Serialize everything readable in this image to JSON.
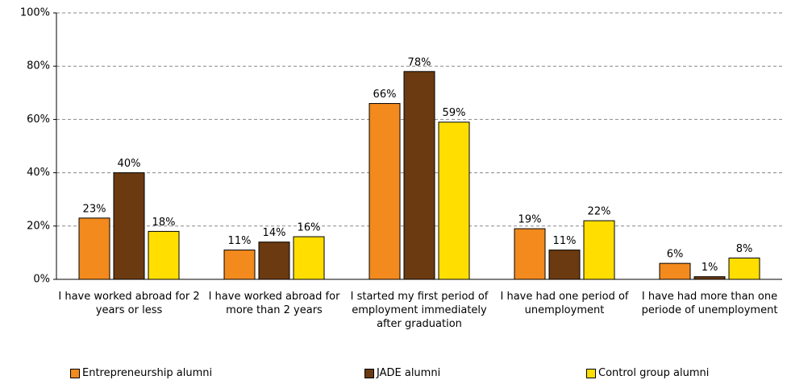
{
  "chart_data": {
    "type": "bar",
    "categories": [
      "I have worked abroad for 2 years or less",
      "I have worked abroad for more than 2 years",
      "I started my first period of employment immediately after graduation",
      "I have had one period of unemployment",
      "I have had more than one periode of unemployment"
    ],
    "series": [
      {
        "name": "Entrepreneurship alumni",
        "color": "#f28a1e",
        "values": [
          23,
          11,
          66,
          19,
          6
        ],
        "value_labels": [
          "23%",
          "11%",
          "66%",
          "19%",
          "6%"
        ]
      },
      {
        "name": "JADE alumni",
        "color": "#6b3a10",
        "values": [
          40,
          14,
          78,
          11,
          1
        ],
        "value_labels": [
          "40%",
          "14%",
          "78%",
          "11%",
          "1%"
        ]
      },
      {
        "name": "Control group alumni",
        "color": "#ffde00",
        "values": [
          18,
          16,
          59,
          22,
          8
        ],
        "value_labels": [
          "18%",
          "16%",
          "59%",
          "22%",
          "8%"
        ]
      }
    ],
    "ylim": [
      0,
      100
    ],
    "yticks": [
      {
        "value": 0,
        "label": "0%"
      },
      {
        "value": 20,
        "label": "20%"
      },
      {
        "value": 40,
        "label": "40%"
      },
      {
        "value": 60,
        "label": "60%"
      },
      {
        "value": 80,
        "label": "80%"
      },
      {
        "value": 100,
        "label": "100%"
      }
    ],
    "grid": true
  }
}
